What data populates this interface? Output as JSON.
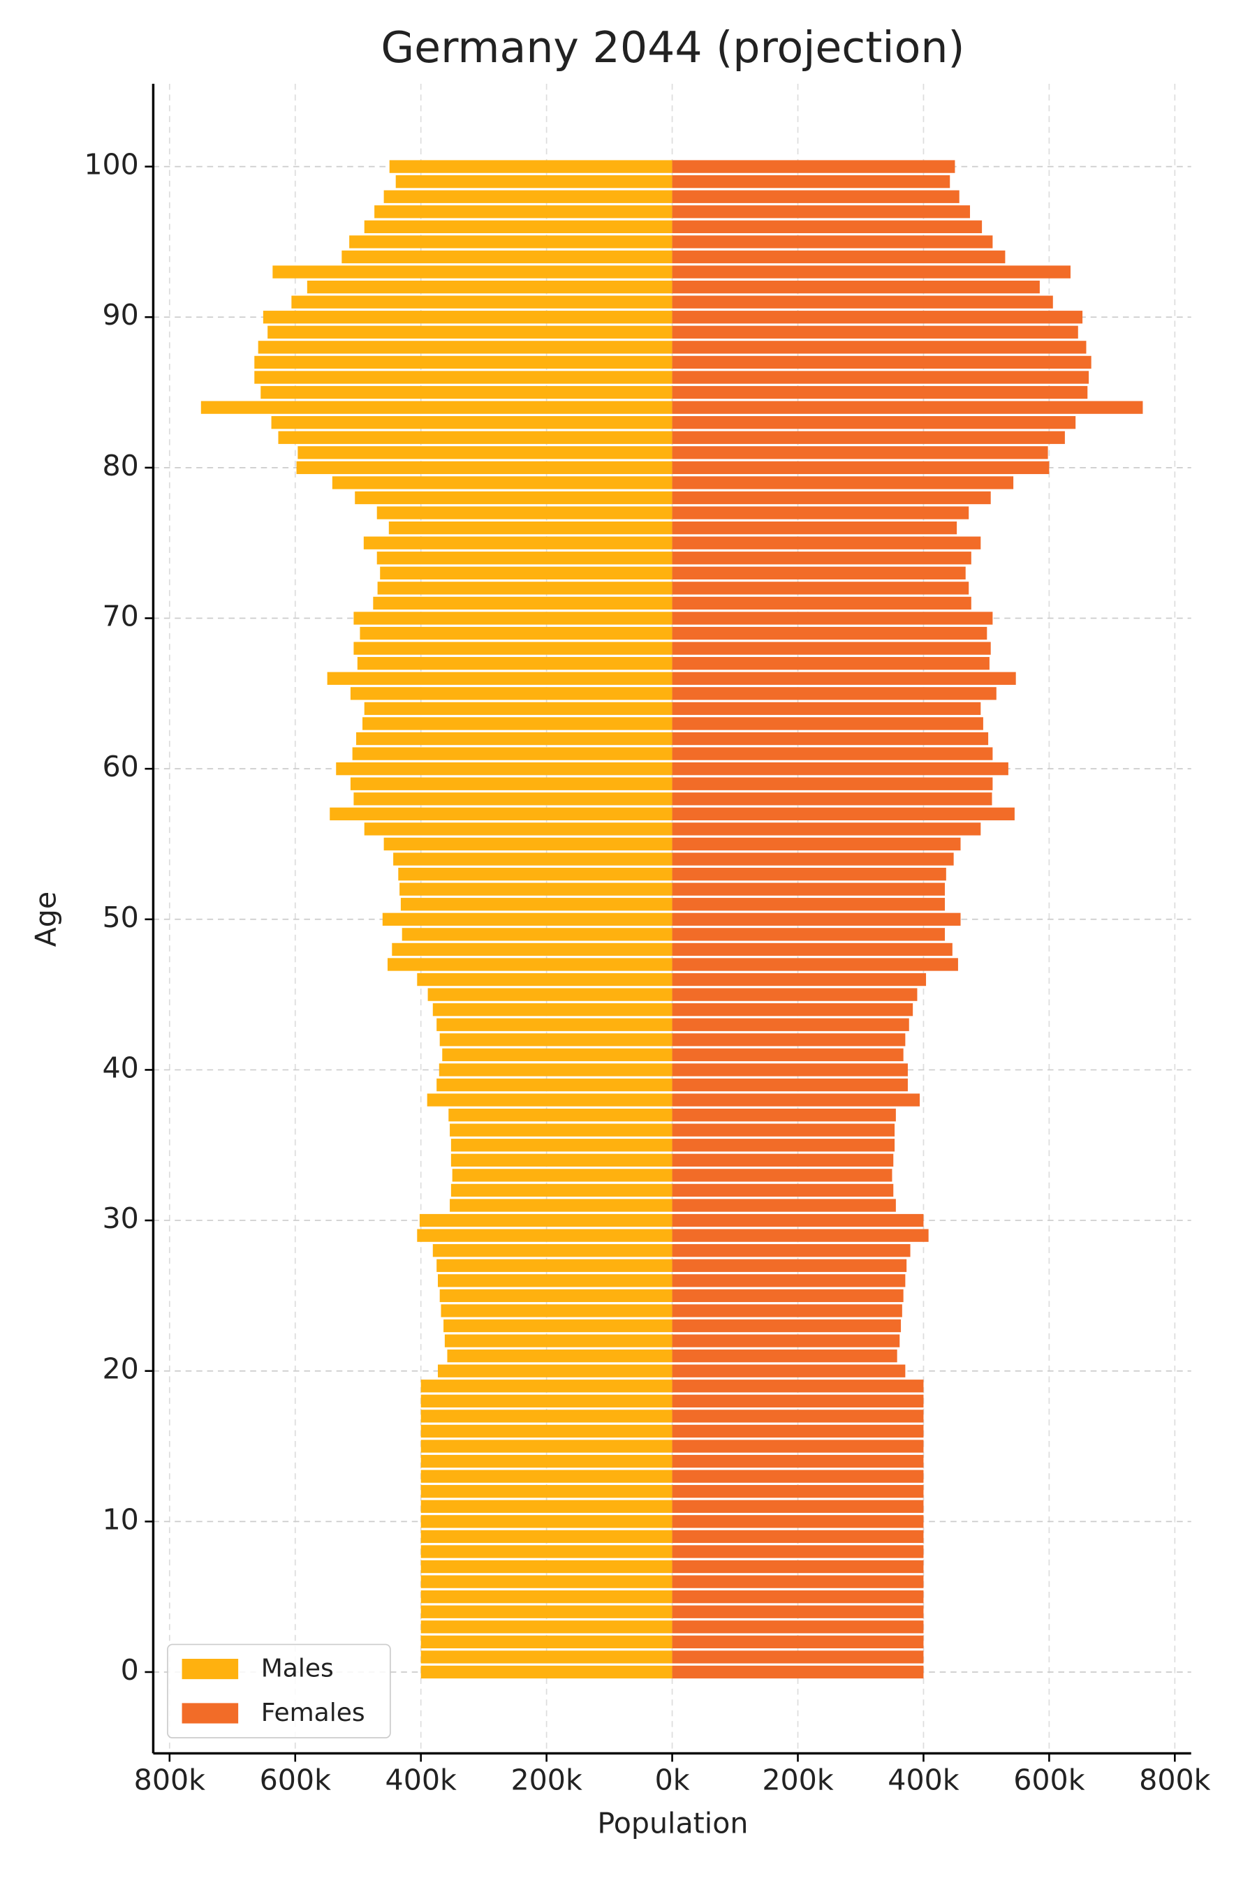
{
  "chart_data": {
    "type": "pyramid",
    "title": "Germany 2044 (projection)",
    "x_label": "Population",
    "y_label": "Age",
    "y": [
      0,
      1,
      2,
      3,
      4,
      5,
      6,
      7,
      8,
      9,
      10,
      11,
      12,
      13,
      14,
      15,
      16,
      17,
      18,
      19,
      20,
      21,
      22,
      23,
      24,
      25,
      26,
      27,
      28,
      29,
      30,
      31,
      32,
      33,
      34,
      35,
      36,
      37,
      38,
      39,
      40,
      41,
      42,
      43,
      44,
      45,
      46,
      47,
      48,
      49,
      50,
      51,
      52,
      53,
      54,
      55,
      56,
      57,
      58,
      59,
      60,
      61,
      62,
      63,
      64,
      65,
      66,
      67,
      68,
      69,
      70,
      71,
      72,
      73,
      74,
      75,
      76,
      77,
      78,
      79,
      80,
      81,
      82,
      83,
      84,
      85,
      86,
      87,
      88,
      89,
      90,
      91,
      92,
      93,
      94,
      95,
      96,
      97,
      98,
      99,
      100
    ],
    "series": [
      {
        "name": "Males",
        "color": "#FFB10F",
        "side": "left",
        "values": [
          400000,
          400000,
          400000,
          400000,
          400000,
          400000,
          400000,
          400000,
          400000,
          400000,
          400000,
          400000,
          400000,
          400000,
          400000,
          400000,
          400000,
          400000,
          400000,
          400000,
          373000,
          358000,
          362000,
          364000,
          368000,
          370000,
          373000,
          375000,
          381000,
          406000,
          402000,
          354000,
          352000,
          350000,
          352000,
          352000,
          354000,
          356000,
          390000,
          375000,
          371000,
          366000,
          370000,
          375000,
          381000,
          389000,
          406000,
          453000,
          446000,
          430000,
          461000,
          432000,
          434000,
          436000,
          444000,
          459000,
          490000,
          545000,
          507000,
          512000,
          535000,
          509000,
          503000,
          493000,
          490000,
          512000,
          549000,
          501000,
          507000,
          497000,
          507000,
          476000,
          469000,
          465000,
          470000,
          491000,
          451000,
          470000,
          505000,
          541000,
          598000,
          596000,
          627000,
          638000,
          750000,
          655000,
          665000,
          665000,
          659000,
          644000,
          651000,
          606000,
          581000,
          636000,
          526000,
          514000,
          490000,
          474000,
          459000,
          440000,
          450000
        ]
      },
      {
        "name": "Females",
        "color": "#F26C28",
        "side": "right",
        "values": [
          400000,
          400000,
          400000,
          400000,
          400000,
          400000,
          400000,
          400000,
          400000,
          400000,
          400000,
          400000,
          400000,
          400000,
          400000,
          400000,
          400000,
          400000,
          400000,
          400000,
          371000,
          358000,
          362000,
          364000,
          366000,
          368000,
          371000,
          373000,
          379000,
          408000,
          400000,
          356000,
          352000,
          350000,
          352000,
          354000,
          354000,
          356000,
          394000,
          375000,
          375000,
          368000,
          371000,
          377000,
          383000,
          390000,
          404000,
          455000,
          446000,
          434000,
          459000,
          434000,
          434000,
          436000,
          448000,
          459000,
          491000,
          545000,
          509000,
          510000,
          535000,
          510000,
          503000,
          495000,
          491000,
          516000,
          547000,
          505000,
          507000,
          501000,
          510000,
          476000,
          472000,
          467000,
          476000,
          491000,
          453000,
          472000,
          507000,
          543000,
          600000,
          598000,
          625000,
          642000,
          749000,
          661000,
          663000,
          667000,
          659000,
          646000,
          653000,
          606000,
          585000,
          634000,
          530000,
          510000,
          493000,
          474000,
          457000,
          442000,
          450000
        ]
      }
    ],
    "xlim": [
      -826000,
      826000
    ],
    "xticks": [
      {
        "value": -800000,
        "label": "800k"
      },
      {
        "value": -600000,
        "label": "600k"
      },
      {
        "value": -400000,
        "label": "400k"
      },
      {
        "value": -200000,
        "label": "200k"
      },
      {
        "value": 0,
        "label": "0k"
      },
      {
        "value": 200000,
        "label": "200k"
      },
      {
        "value": 400000,
        "label": "400k"
      },
      {
        "value": 600000,
        "label": "600k"
      },
      {
        "value": 800000,
        "label": "800k"
      }
    ],
    "ylim": [
      -5.4,
      105.5
    ],
    "yticks": [
      0,
      10,
      20,
      30,
      40,
      50,
      60,
      70,
      80,
      90,
      100
    ],
    "grid": true,
    "legend": "lower left"
  }
}
